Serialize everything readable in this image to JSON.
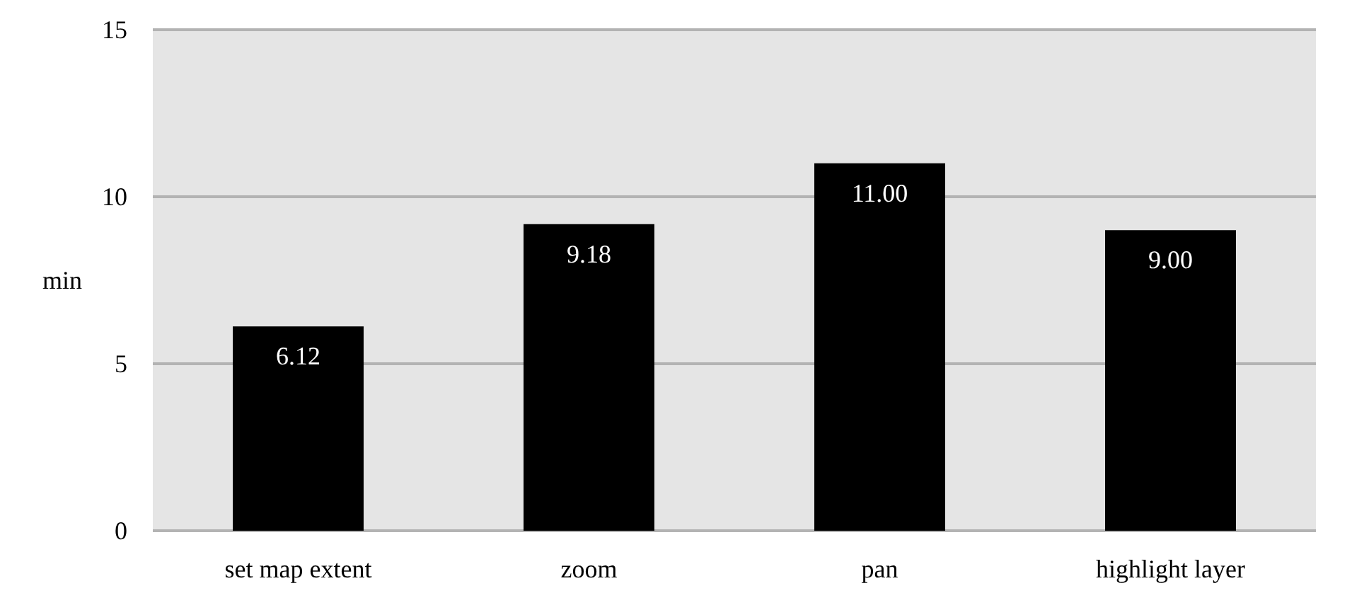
{
  "chart_data": {
    "type": "bar",
    "ylabel": "min",
    "categories": [
      "set map extent",
      "zoom",
      "pan",
      "highlight layer"
    ],
    "values": [
      6.12,
      9.18,
      11.0,
      9.0
    ],
    "color": "#000000",
    "value_labels": [
      "6.12",
      "9.18",
      "11.00",
      "9.00"
    ],
    "ylim": [
      0,
      15
    ],
    "yticks": [
      0,
      5,
      10,
      15
    ],
    "grid": "y"
  }
}
